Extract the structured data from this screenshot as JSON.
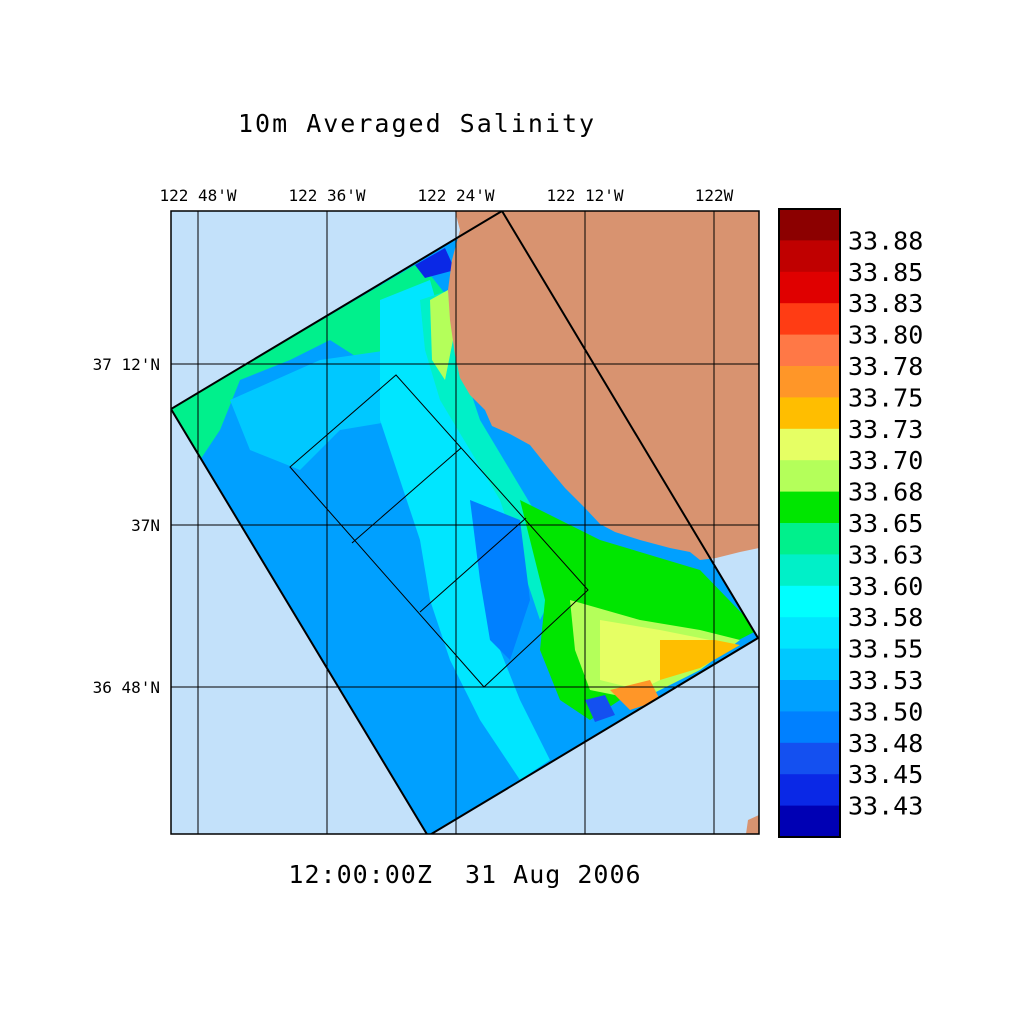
{
  "title": "10m Averaged Salinity",
  "timestamp": "12:00:00Z  31 Aug 2006",
  "axes": {
    "lon_labels": [
      "122 48'W",
      "122 36'W",
      "122 24'W",
      "122 12'W",
      "122W"
    ],
    "lat_labels": [
      "37 12'N",
      "37N",
      "36 48'N"
    ]
  },
  "colorbar": {
    "labels": [
      "33.88",
      "33.85",
      "33.83",
      "33.80",
      "33.78",
      "33.75",
      "33.73",
      "33.70",
      "33.68",
      "33.65",
      "33.63",
      "33.60",
      "33.58",
      "33.55",
      "33.53",
      "33.50",
      "33.48",
      "33.45",
      "33.43"
    ],
    "colors": [
      "#8c0000",
      "#c00000",
      "#e00000",
      "#ff3c14",
      "#ff7846",
      "#ff9628",
      "#ffbe00",
      "#e6ff64",
      "#b4ff5a",
      "#00e600",
      "#00f08c",
      "#00f0c8",
      "#00ffff",
      "#00e6ff",
      "#00c8ff",
      "#00a0ff",
      "#0080ff",
      "#1450f0",
      "#0a28e6",
      "#0000b4"
    ]
  },
  "colors": {
    "water": "#c3e1fa",
    "land": "#d89370",
    "field_base": "#00a0ff"
  }
}
